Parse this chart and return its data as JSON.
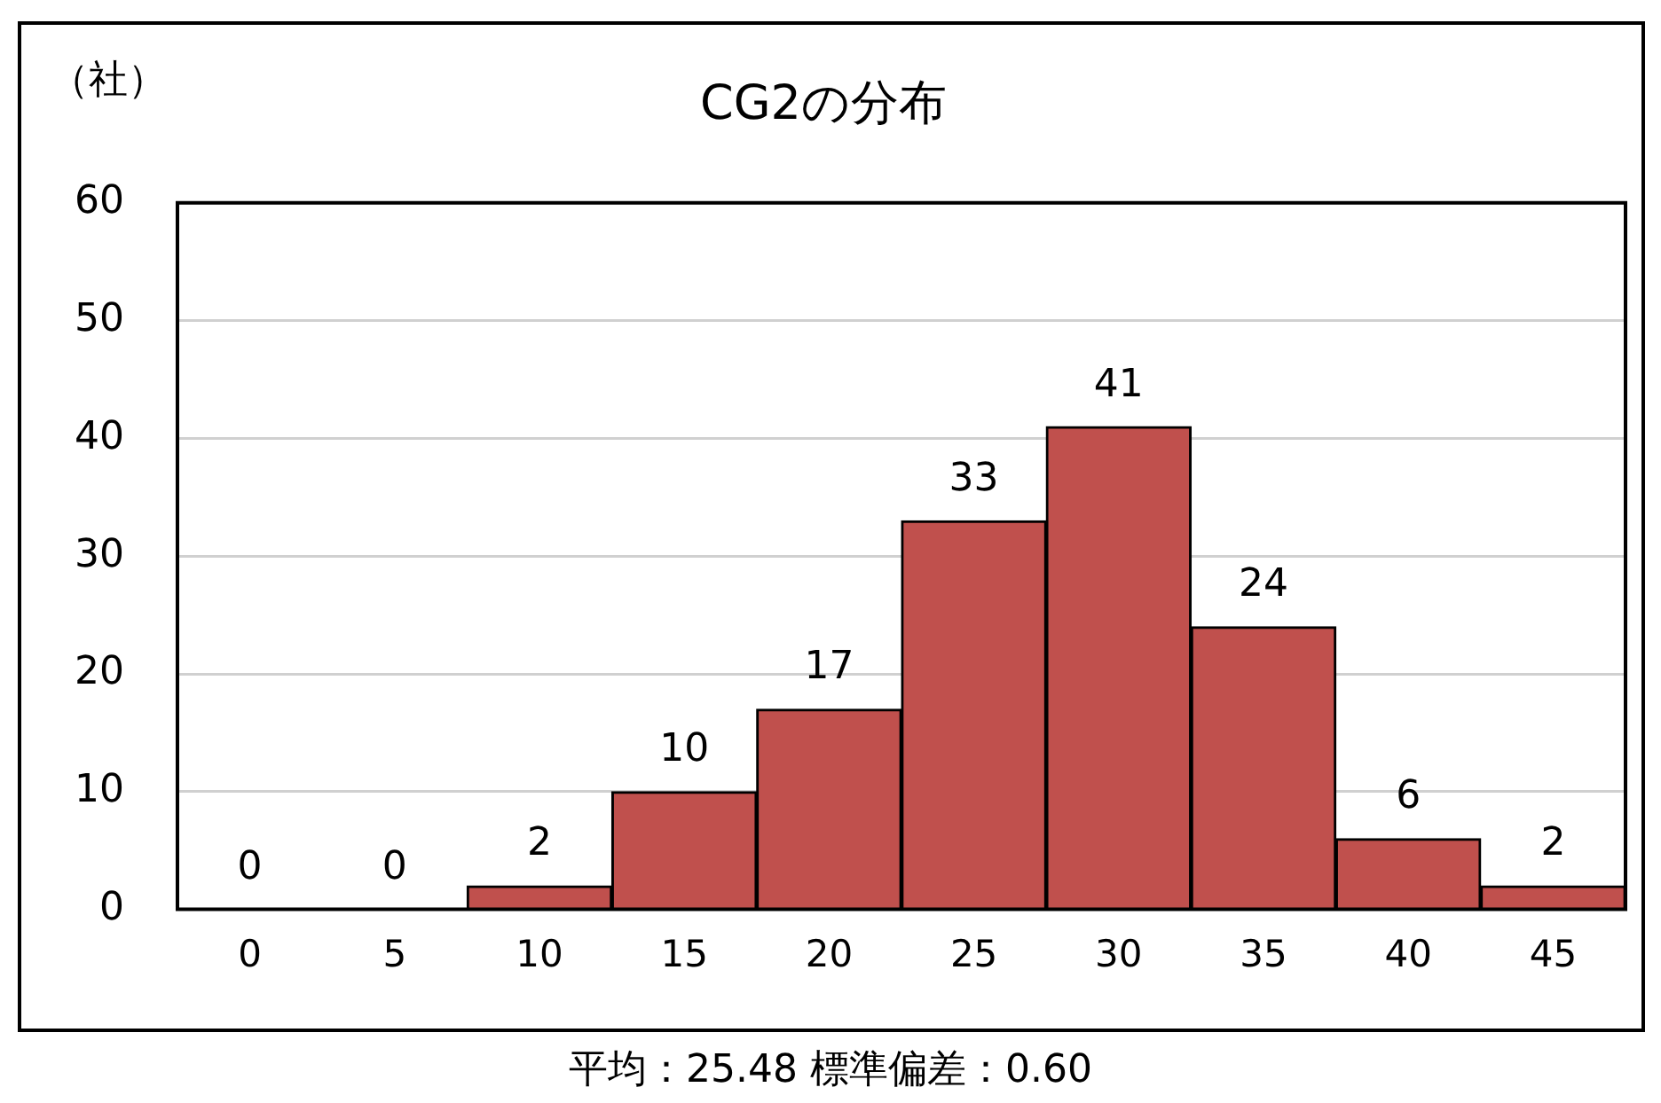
{
  "chart_data": {
    "type": "bar",
    "title": "CG2の分布",
    "ylabel": "（社）",
    "categories": [
      "0",
      "5",
      "10",
      "15",
      "20",
      "25",
      "30",
      "35",
      "40",
      "45"
    ],
    "values": [
      0,
      0,
      2,
      10,
      17,
      33,
      41,
      24,
      6,
      2
    ],
    "color": "#c0504d",
    "ylim": [
      0,
      60
    ],
    "yticks": [
      0,
      10,
      20,
      30,
      40,
      50,
      60
    ],
    "grid": "y",
    "data_labels": true,
    "annotations": [
      "平均：25.48 標準偏差：0.60"
    ]
  }
}
